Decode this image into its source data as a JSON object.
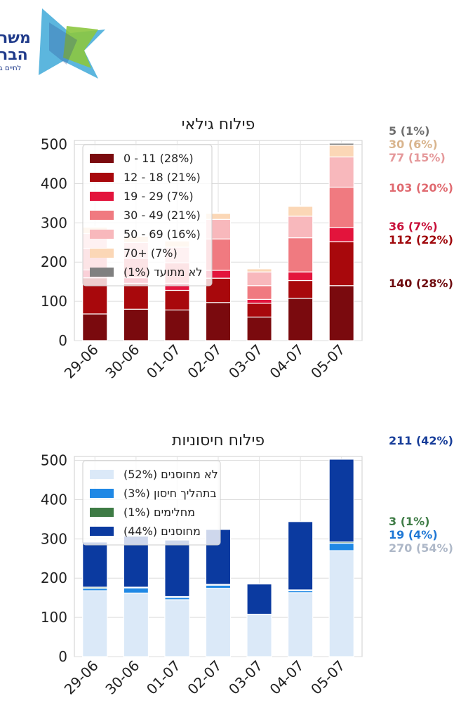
{
  "logo": {
    "line1": "משר",
    "line2": "הבר",
    "line3": "לחיים ב",
    "colors": [
      "#3fa9d8",
      "#8cc63f",
      "#1f3a8a"
    ]
  },
  "chart_data": [
    {
      "type": "bar",
      "stacked": true,
      "title": "פילוח גילאי",
      "categories": [
        "29-06",
        "30-06",
        "01-07",
        "02-07",
        "03-07",
        "04-07",
        "05-07"
      ],
      "ylim": [
        0,
        510
      ],
      "yticks": [
        0,
        100,
        200,
        300,
        400,
        500
      ],
      "grid": true,
      "legend_position": "top-left",
      "series": [
        {
          "name": "0 - 11 (28%)",
          "color": "#7a0a0e",
          "values": [
            68,
            80,
            78,
            97,
            60,
            108,
            140
          ]
        },
        {
          "name": "12 - 18 (21%)",
          "color": "#a8080c",
          "values": [
            92,
            66,
            50,
            62,
            35,
            45,
            112
          ]
        },
        {
          "name": "19 - 29 (7%)",
          "color": "#e3143c",
          "values": [
            20,
            14,
            18,
            20,
            10,
            22,
            36
          ]
        },
        {
          "name": "30 - 49 (21%)",
          "color": "#f07a80",
          "values": [
            55,
            50,
            52,
            80,
            35,
            87,
            103
          ]
        },
        {
          "name": "50 - 69 (16%)",
          "color": "#f8b8bc",
          "values": [
            38,
            40,
            40,
            50,
            35,
            55,
            77
          ]
        },
        {
          "name": "70+ (7%)",
          "color": "#fbd7b6",
          "values": [
            16,
            16,
            16,
            15,
            8,
            25,
            30
          ]
        },
        {
          "name": "לא מתועד (1%)",
          "color": "#808080",
          "values": [
            2,
            2,
            2,
            2,
            1,
            2,
            5
          ]
        }
      ],
      "side_labels": [
        {
          "text": "5 (1%)",
          "color": "#6e6e6e"
        },
        {
          "text": "30 (6%)",
          "color": "#d9b58e"
        },
        {
          "text": "77 (15%)",
          "color": "#e5999b"
        },
        {
          "text": "103 (20%)",
          "color": "#e06a70"
        },
        {
          "text": "36 (7%)",
          "color": "#c8103a"
        },
        {
          "text": "112 (22%)",
          "color": "#a0080c"
        },
        {
          "text": "140 (28%)",
          "color": "#6e0a0e"
        }
      ]
    },
    {
      "type": "bar",
      "stacked": true,
      "title": "פילוח חיסוניות",
      "categories": [
        "29-06",
        "30-06",
        "01-07",
        "02-07",
        "03-07",
        "04-07",
        "05-07"
      ],
      "ylim": [
        0,
        510
      ],
      "yticks": [
        0,
        100,
        200,
        300,
        400,
        500
      ],
      "grid": true,
      "legend_position": "top-left",
      "series": [
        {
          "name": "לא מחוסנים (52%)",
          "color": "#dbe9f8",
          "values": [
            168,
            162,
            145,
            174,
            108,
            163,
            270
          ]
        },
        {
          "name": "בתהליך חיסון (3%)",
          "color": "#1f88e5",
          "values": [
            6,
            13,
            6,
            8,
            0,
            5,
            19
          ]
        },
        {
          "name": "מחלימים (1%)",
          "color": "#3e7b45",
          "values": [
            3,
            2,
            2,
            2,
            0,
            2,
            3
          ]
        },
        {
          "name": "מחוסנים (44%)",
          "color": "#0b3aa0",
          "values": [
            115,
            130,
            144,
            140,
            77,
            174,
            211
          ]
        }
      ],
      "side_labels": [
        {
          "text": "211 (42%)",
          "color": "#173d99"
        },
        {
          "text": "3 (1%)",
          "color": "#3e7b45"
        },
        {
          "text": "19 (4%)",
          "color": "#1f78d5"
        },
        {
          "text": "270 (54%)",
          "color": "#aeb8c8"
        }
      ]
    }
  ]
}
